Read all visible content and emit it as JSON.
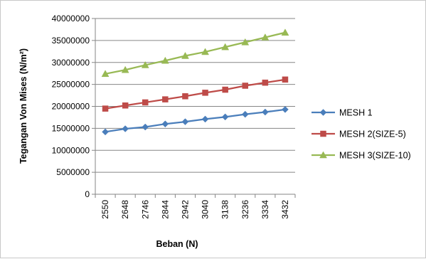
{
  "chart_data": {
    "type": "line",
    "title": "",
    "xlabel": "Beban (N)",
    "ylabel": "Tegangan Von Mises (N/m²)",
    "categories": [
      "2550",
      "2648",
      "2746",
      "2844",
      "2942",
      "3040",
      "3138",
      "3236",
      "3334",
      "3432"
    ],
    "ylim": [
      0,
      40000000
    ],
    "yticks": [
      0,
      5000000,
      10000000,
      15000000,
      20000000,
      25000000,
      30000000,
      35000000,
      40000000
    ],
    "grid": "horizontal",
    "legend_position": "right",
    "series": [
      {
        "name": "MESH 1",
        "color": "#4a7ebb",
        "marker": "diamond",
        "values": [
          14200000,
          14900000,
          15300000,
          16000000,
          16500000,
          17100000,
          17600000,
          18200000,
          18700000,
          19300000
        ]
      },
      {
        "name": "MESH 2(SIZE-5)",
        "color": "#be4b48",
        "marker": "square",
        "values": [
          19500000,
          20200000,
          20900000,
          21600000,
          22300000,
          23100000,
          23800000,
          24700000,
          25400000,
          26100000
        ]
      },
      {
        "name": "MESH 3(SIZE-10)",
        "color": "#98b954",
        "marker": "triangle",
        "values": [
          27400000,
          28300000,
          29400000,
          30400000,
          31500000,
          32400000,
          33500000,
          34600000,
          35700000,
          36800000
        ]
      }
    ]
  }
}
